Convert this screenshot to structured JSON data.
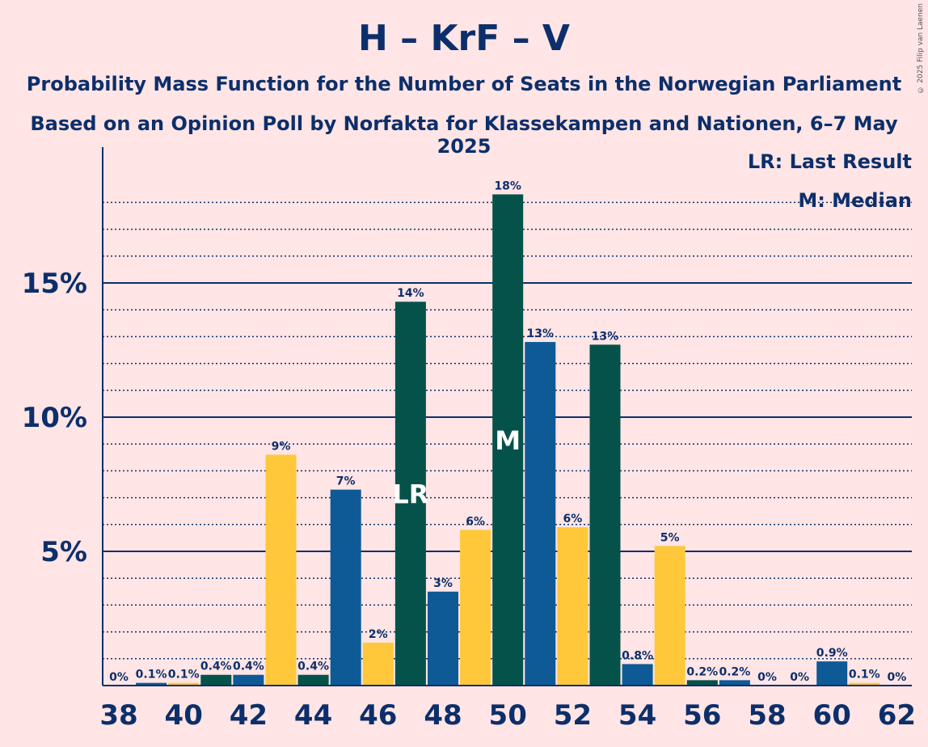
{
  "chart_data": {
    "type": "bar",
    "title": "H – KrF – V",
    "subtitle1": "Probability Mass Function for the Number of Seats in the Norwegian Parliament",
    "subtitle2": "Based on an Opinion Poll by Norfakta for Klassekampen and Nationen, 6–7 May 2025",
    "copyright": "© 2025 Filip van Laenen",
    "legend": {
      "lr": "LR: Last Result",
      "m": "M: Median"
    },
    "x": [
      38,
      39,
      40,
      41,
      42,
      43,
      44,
      45,
      46,
      47,
      48,
      49,
      50,
      51,
      52,
      53,
      54,
      55,
      56,
      57,
      58,
      59,
      60,
      61,
      62
    ],
    "values": [
      0,
      0.1,
      0.1,
      0.4,
      0.4,
      8.6,
      0.4,
      7.3,
      1.6,
      14.3,
      3.5,
      5.8,
      18.3,
      12.8,
      5.9,
      12.7,
      0.8,
      5.2,
      0.2,
      0.2,
      0,
      0,
      0.9,
      0.1,
      0
    ],
    "labels": [
      "0%",
      "0.1%",
      "0.1%",
      "0.4%",
      "0.4%",
      "9%",
      "0.4%",
      "7%",
      "2%",
      "14%",
      "3%",
      "6%",
      "18%",
      "13%",
      "6%",
      "13%",
      "0.8%",
      "5%",
      "0.2%",
      "0.2%",
      "0%",
      "0%",
      "0.9%",
      "0.1%",
      "0%"
    ],
    "colors": [
      "#0E5A96",
      "#0E5A96",
      "#FFC83A",
      "#05524A",
      "#0E5A96",
      "#FFC83A",
      "#05524A",
      "#0E5A96",
      "#FFC83A",
      "#05524A",
      "#0E5A96",
      "#FFC83A",
      "#05524A",
      "#0E5A96",
      "#FFC83A",
      "#05524A",
      "#0E5A96",
      "#FFC83A",
      "#05524A",
      "#0E5A96",
      "#FFC83A",
      "#05524A",
      "#0E5A96",
      "#FFC83A",
      "#05524A"
    ],
    "x_ticks": [
      38,
      40,
      42,
      44,
      46,
      48,
      50,
      52,
      54,
      56,
      58,
      60,
      62
    ],
    "y_ticks": [
      5,
      10,
      15
    ],
    "y_tick_labels": [
      "5%",
      "10%",
      "15%"
    ],
    "ylim": [
      0,
      20
    ],
    "last_result_seat": 47,
    "last_result_marker": "LR",
    "median_seat": 50,
    "median_marker": "M",
    "grid": true,
    "legend_position": "top-right"
  }
}
